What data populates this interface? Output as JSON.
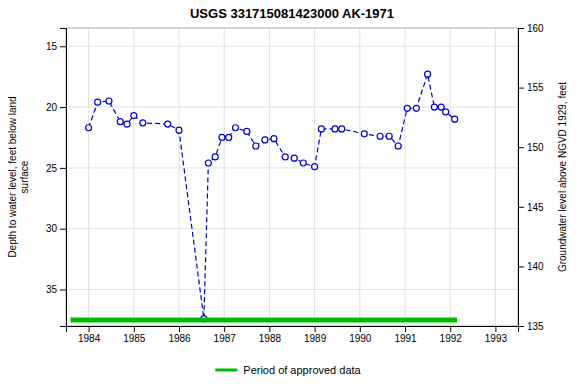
{
  "chart_data": {
    "type": "line",
    "title": "USGS 331715081423000 AK-1971",
    "y_label": "Depth to water level, feet below land\nsurface",
    "y2_label": "Groundwater level above NGVD 1929, feet",
    "xlim": [
      1983.5,
      1993.5
    ],
    "xticks": [
      1984,
      1985,
      1986,
      1987,
      1988,
      1989,
      1990,
      1991,
      1992,
      1993
    ],
    "ylim": [
      38.0,
      13.5
    ],
    "yticks": [
      15,
      20,
      25,
      30,
      35
    ],
    "y2lim": [
      135,
      160
    ],
    "y2ticks": [
      135,
      140,
      145,
      150,
      155,
      160
    ],
    "grid": true,
    "legend": "bottom",
    "series": [
      {
        "color": "#0000cc",
        "line_style": "dashed",
        "marker": "circle",
        "x": [
          1984.0,
          1984.2,
          1984.45,
          1984.7,
          1984.85,
          1985.0,
          1985.2,
          1985.75,
          1986.0,
          1986.55,
          1986.65,
          1986.8,
          1986.95,
          1987.1,
          1987.25,
          1987.5,
          1987.7,
          1987.9,
          1988.1,
          1988.35,
          1988.55,
          1988.75,
          1989.0,
          1989.15,
          1989.45,
          1989.6,
          1990.1,
          1990.45,
          1990.65,
          1990.85,
          1991.05,
          1991.25,
          1991.5,
          1991.65,
          1991.8,
          1991.9,
          1992.1
        ],
        "values": [
          21.7,
          19.6,
          19.5,
          21.2,
          21.4,
          20.7,
          21.3,
          21.4,
          21.9,
          37.4,
          24.6,
          24.1,
          22.5,
          22.5,
          21.7,
          22.0,
          23.2,
          22.7,
          22.6,
          24.1,
          24.2,
          24.6,
          24.9,
          21.8,
          21.8,
          21.8,
          22.2,
          22.4,
          22.4,
          23.2,
          20.1,
          20.1,
          17.3,
          20.0,
          20.0,
          20.4,
          21.0
        ]
      },
      {
        "name": "Period of approved data",
        "color": "#00bb00",
        "line_style": "solid",
        "x": [
          1983.6,
          1992.15
        ],
        "values": [
          37.5,
          37.5
        ]
      }
    ]
  }
}
